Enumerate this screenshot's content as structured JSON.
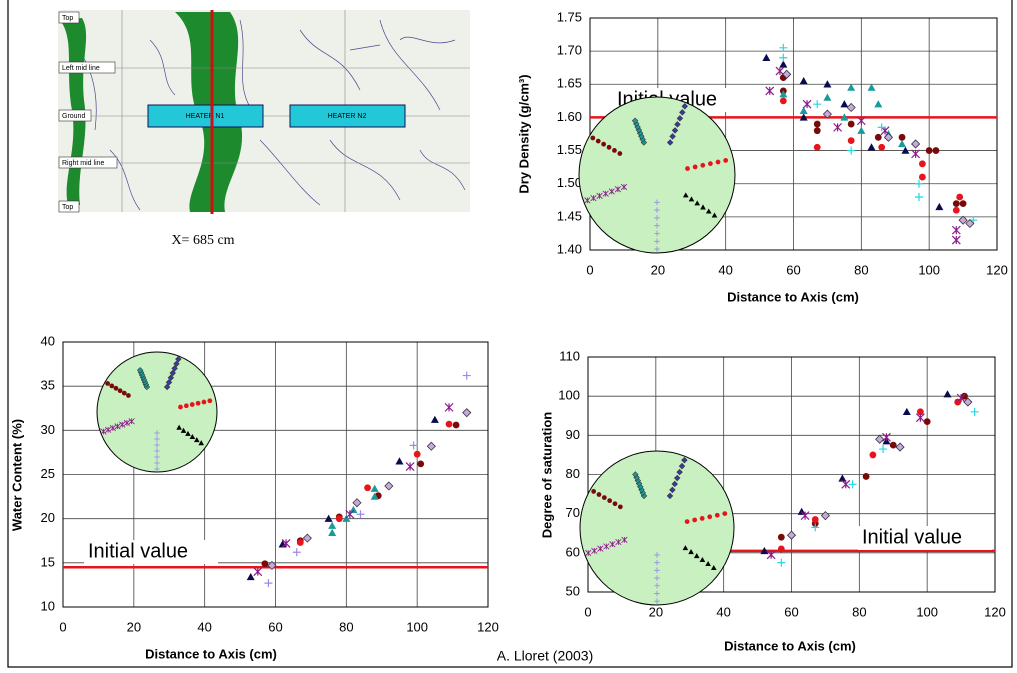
{
  "photo": {
    "labels": [
      "Top",
      "Left mid line",
      "Ground",
      "Right mid line",
      "Top"
    ],
    "heaters": [
      "HEATER N1",
      "HEATER N2"
    ],
    "caption": "X= 685 cm"
  },
  "credit": "A. Lloret (2003)",
  "chart_data": [
    {
      "type": "scatter",
      "xlabel": "Distance to Axis (cm)",
      "ylabel": "Dry Density (g/cm³)",
      "xlim": [
        0,
        120
      ],
      "xticks": [
        0,
        20,
        40,
        60,
        80,
        100,
        120
      ],
      "ylim": [
        1.4,
        1.75
      ],
      "yticks": [
        {
          "value": 1.4,
          "label": "1.40"
        },
        {
          "value": 1.45,
          "label": "1.45"
        },
        {
          "value": 1.5,
          "label": "1.50"
        },
        {
          "value": 1.55,
          "label": "1.55"
        },
        {
          "value": 1.6,
          "label": "1.60"
        },
        {
          "value": 1.65,
          "label": "1.65"
        },
        {
          "value": 1.7,
          "label": "1.70"
        },
        {
          "value": 1.75,
          "label": "1.75"
        }
      ],
      "grid": true,
      "hline": 1.6,
      "hline_label": "Initial value",
      "hline_color": "#e8141c",
      "series": [
        {
          "color": "#0a0a50",
          "marker": "triangle",
          "x": [
            52,
            57,
            63,
            63,
            70,
            75,
            83,
            93,
            103
          ],
          "values": [
            1.69,
            1.68,
            1.655,
            1.6,
            1.65,
            1.62,
            1.555,
            1.55,
            1.465
          ]
        },
        {
          "color": "#7a0a0a",
          "marker": "circle",
          "x": [
            57,
            57,
            67,
            67,
            77,
            85,
            92,
            100,
            102,
            108,
            110
          ],
          "values": [
            1.66,
            1.64,
            1.59,
            1.58,
            1.59,
            1.57,
            1.57,
            1.55,
            1.55,
            1.47,
            1.47
          ]
        },
        {
          "color": "#e8141c",
          "marker": "circle",
          "x": [
            57,
            67,
            77,
            86,
            98,
            98,
            108,
            109
          ],
          "values": [
            1.625,
            1.555,
            1.565,
            1.555,
            1.53,
            1.51,
            1.46,
            1.48
          ]
        },
        {
          "color": "#1a9a9a",
          "marker": "triangle",
          "x": [
            57,
            63,
            70,
            75,
            77,
            80,
            83,
            85,
            88,
            92
          ],
          "values": [
            1.635,
            1.61,
            1.63,
            1.6,
            1.645,
            1.58,
            1.645,
            1.62,
            1.575,
            1.56
          ]
        },
        {
          "color": "#8a1a8a",
          "marker": "asterisk",
          "x": [
            53,
            56,
            64,
            73,
            80,
            87,
            96,
            108,
            108
          ],
          "values": [
            1.64,
            1.67,
            1.62,
            1.585,
            1.595,
            1.58,
            1.545,
            1.43,
            1.415
          ]
        },
        {
          "color": "#22d8e8",
          "marker": "plus",
          "x": [
            57,
            57,
            67,
            77,
            86,
            97,
            97,
            113
          ],
          "values": [
            1.705,
            1.69,
            1.62,
            1.55,
            1.585,
            1.5,
            1.48,
            1.445
          ]
        },
        {
          "color": "#c8a8e0",
          "marker": "diamond",
          "x": [
            58,
            70,
            77,
            88,
            96,
            110,
            112
          ],
          "values": [
            1.665,
            1.605,
            1.615,
            1.57,
            1.56,
            1.445,
            1.44
          ]
        }
      ]
    },
    {
      "type": "scatter",
      "xlabel": "Distance to Axis (cm)",
      "ylabel": "Water Content (%)",
      "xlim": [
        0,
        120
      ],
      "xticks": [
        0,
        20,
        40,
        60,
        80,
        100,
        120
      ],
      "ylim": [
        10,
        40
      ],
      "yticks": [
        10,
        15,
        20,
        25,
        30,
        35,
        40
      ],
      "grid": true,
      "hline": 14.5,
      "hline_label": "Initial value",
      "hline_color": "#e8141c",
      "series": [
        {
          "color": "#0a0a50",
          "marker": "triangle",
          "x": [
            53,
            62,
            75,
            95,
            105
          ],
          "values": [
            13.4,
            17.1,
            20,
            26.5,
            31.2
          ]
        },
        {
          "color": "#7a0a0a",
          "marker": "circle",
          "x": [
            57,
            67,
            78,
            89,
            101,
            111
          ],
          "values": [
            14.9,
            17.5,
            20.2,
            22.6,
            26.2,
            30.6
          ]
        },
        {
          "color": "#e8141c",
          "marker": "circle",
          "x": [
            67,
            78,
            86,
            100,
            109
          ],
          "values": [
            17.3,
            20,
            23.5,
            27.3,
            30.7
          ]
        },
        {
          "color": "#1a9a9a",
          "marker": "triangle",
          "x": [
            76,
            76,
            80,
            82,
            88,
            88
          ],
          "values": [
            19.2,
            18.4,
            20,
            21,
            22.5,
            23.4
          ]
        },
        {
          "color": "#8a1a8a",
          "marker": "asterisk",
          "x": [
            55,
            63,
            81,
            98,
            109
          ],
          "values": [
            14,
            17.2,
            20.5,
            25.9,
            32.6
          ]
        },
        {
          "color": "#9a8ae8",
          "marker": "plus",
          "x": [
            58,
            66,
            84,
            99,
            114
          ],
          "values": [
            12.7,
            16.2,
            20.5,
            28.3,
            36.2
          ]
        },
        {
          "color": "#c8a8e0",
          "marker": "diamond",
          "x": [
            59,
            69,
            83,
            92,
            104,
            114
          ],
          "values": [
            14.7,
            17.8,
            21.8,
            23.7,
            28.2,
            32
          ]
        }
      ]
    },
    {
      "type": "scatter",
      "xlabel": "Distance to Axis (cm)",
      "ylabel": "Degree of saturation",
      "xlim": [
        0,
        120
      ],
      "xticks": [
        0,
        20,
        40,
        60,
        80,
        100,
        120
      ],
      "ylim": [
        50,
        110
      ],
      "yticks": [
        50,
        60,
        70,
        80,
        90,
        100,
        110
      ],
      "grid": true,
      "hline": 60.5,
      "hline_label": "Initial value",
      "hline_color": "#e8141c",
      "series": [
        {
          "color": "#0a0a50",
          "marker": "triangle",
          "x": [
            52,
            63,
            75,
            88,
            94,
            106
          ],
          "values": [
            60.5,
            70.5,
            79,
            88.5,
            96,
            100.5
          ]
        },
        {
          "color": "#7a0a0a",
          "marker": "circle",
          "x": [
            57,
            67,
            82,
            90,
            100,
            111
          ],
          "values": [
            64,
            67.5,
            79.5,
            87.5,
            93.5,
            100
          ]
        },
        {
          "color": "#e8141c",
          "marker": "circle",
          "x": [
            57,
            67,
            84,
            98,
            109
          ],
          "values": [
            61,
            68.5,
            85,
            96,
            98.5
          ]
        },
        {
          "color": "#8a1a8a",
          "marker": "asterisk",
          "x": [
            54,
            64,
            76,
            88,
            98,
            110
          ],
          "values": [
            59.5,
            69.5,
            77.5,
            89.5,
            94.5,
            99.5
          ]
        },
        {
          "color": "#22d8e8",
          "marker": "plus",
          "x": [
            57,
            67,
            78,
            87,
            114
          ],
          "values": [
            57.5,
            66.5,
            77.5,
            86.5,
            96
          ]
        },
        {
          "color": "#c8a8e0",
          "marker": "diamond",
          "x": [
            60,
            70,
            86,
            92,
            112
          ],
          "values": [
            64.5,
            69.5,
            89,
            87,
            98.5
          ]
        }
      ]
    }
  ]
}
